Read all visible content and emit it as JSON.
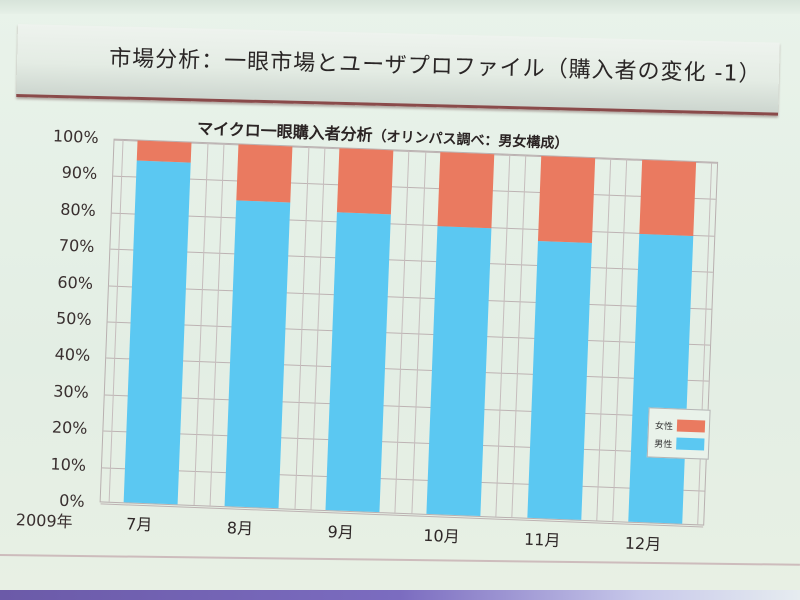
{
  "slide": {
    "title": "市場分析：一眼市場とユーザプロファイル（購入者の変化 -1）"
  },
  "chart_data": {
    "type": "bar",
    "stacked": true,
    "title": "マイクロ一眼購入者分析",
    "subtitle": "（オリンパス調べ：男女構成）",
    "xlabel": "2009年",
    "ylabel": "",
    "categories": [
      "7月",
      "8月",
      "9月",
      "10月",
      "11月",
      "12月"
    ],
    "series": [
      {
        "name": "男性",
        "color": "#5bc8f2",
        "values": [
          94,
          84,
          82,
          79,
          76,
          79
        ]
      },
      {
        "name": "女性",
        "color": "#ea7a60",
        "values": [
          5.5,
          15.5,
          17.5,
          20.5,
          23.5,
          20.5
        ]
      }
    ],
    "yticks": [
      "0%",
      "10%",
      "20%",
      "30%",
      "40%",
      "50%",
      "60%",
      "70%",
      "80%",
      "90%",
      "100%"
    ],
    "ylim": [
      0,
      100
    ],
    "grid": true,
    "legend": {
      "position": "right-inside",
      "entries": [
        "女性",
        "男性"
      ]
    }
  },
  "legend": {
    "female_label": "女性",
    "male_label": "男性"
  },
  "axis": {
    "year_label": "2009年"
  }
}
